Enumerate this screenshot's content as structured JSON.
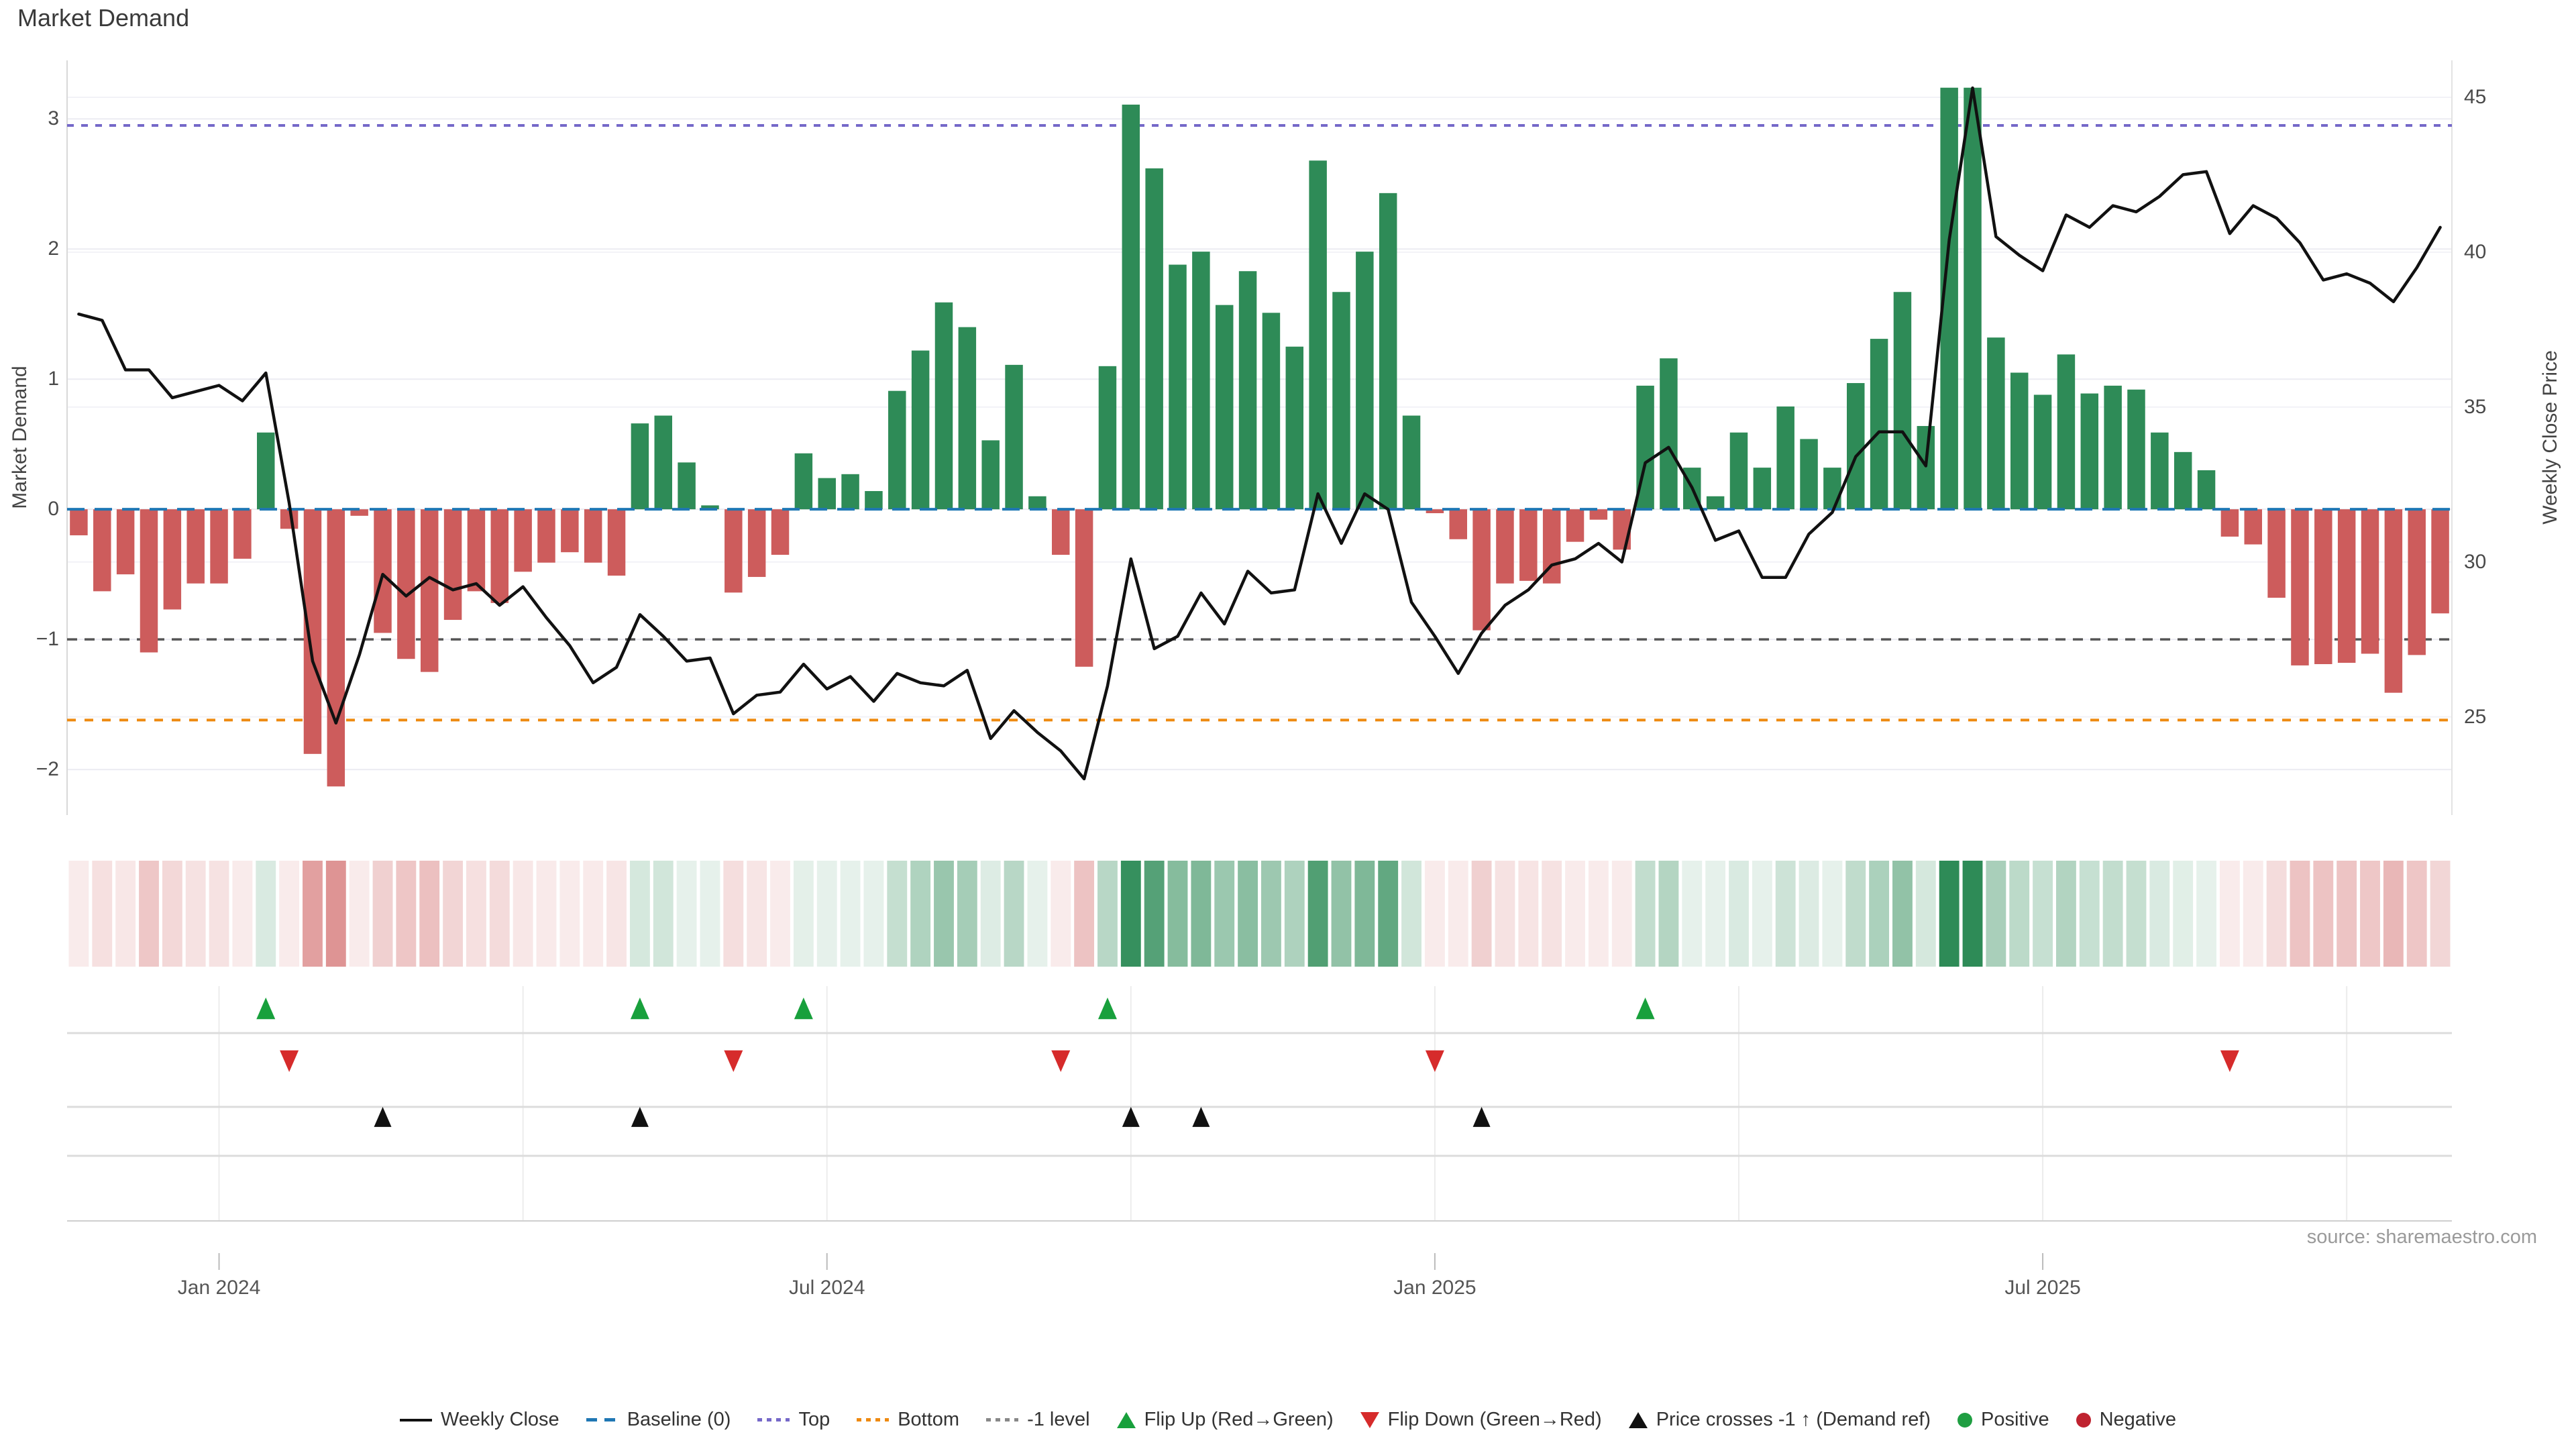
{
  "title": "Market Demand",
  "source": "source: sharemaestro.com",
  "left_axis": {
    "title": "Market Demand",
    "ticks": [
      3,
      2,
      1,
      0,
      -1,
      -2
    ]
  },
  "right_axis": {
    "title": "Weekly Close Price",
    "ticks": [
      45,
      40,
      35,
      30,
      25
    ]
  },
  "colors": {
    "bar_positive": "#2e8b57",
    "bar_negative": "#cd5c5c",
    "price_line": "#111111",
    "baseline_line": "#1f77b4",
    "top_line": "#7568c9",
    "bottom_line": "#ee8a10",
    "minus1_line": "#555555",
    "flip_up_marker": "#18a03c",
    "flip_down_marker": "#d62b2b",
    "price_cross_marker": "#111111",
    "grid": "#ececf2"
  },
  "legend": [
    {
      "key": "weekly-close",
      "label": "Weekly Close",
      "swatch": "line",
      "color": "#111111"
    },
    {
      "key": "baseline",
      "label": "Baseline (0)",
      "swatch": "dash",
      "color": "#1f77b4"
    },
    {
      "key": "top",
      "label": "Top",
      "swatch": "dot",
      "color": "#7568c9"
    },
    {
      "key": "bottom",
      "label": "Bottom",
      "swatch": "dot",
      "color": "#ee8a10"
    },
    {
      "key": "minus1-level",
      "label": "-1 level",
      "swatch": "dot",
      "color": "#888888"
    },
    {
      "key": "flip-up",
      "label": "Flip Up (Red→Green)",
      "swatch": "tri-up",
      "color": "#18a03c"
    },
    {
      "key": "flip-down",
      "label": "Flip Down (Green→Red)",
      "swatch": "tri-down",
      "color": "#d62b2b"
    },
    {
      "key": "price-cross",
      "label": "Price crosses -1 ↑ (Demand ref)",
      "swatch": "tri-up",
      "color": "#111111"
    },
    {
      "key": "positive",
      "label": "Positive",
      "swatch": "circle",
      "color": "#1f9e42"
    },
    {
      "key": "negative",
      "label": "Negative",
      "swatch": "circle",
      "color": "#bf2330"
    }
  ],
  "chart_data": {
    "type": "bar",
    "subtype": "combo-bar-line-with-heatmap-and-event-markers",
    "x_unit": "week",
    "n_points": 102,
    "x_range_note": "weekly data, late Nov 2023 through Oct 2025",
    "x_tick_labels": [
      {
        "label": "Jan 2024",
        "week": 7
      },
      {
        "label": "Jul 2024",
        "week": 33
      },
      {
        "label": "Jan 2025",
        "week": 59
      },
      {
        "label": "Jul 2025",
        "week": 85
      }
    ],
    "quarter_gridline_weeks": [
      7,
      20,
      33,
      46,
      59,
      72,
      85,
      98
    ],
    "ylim_left": [
      -2.35,
      3.45
    ],
    "ylim_right_ticks": [
      25,
      45
    ],
    "right_axis_map": {
      "price_at_demand_zero": 31.7,
      "price_per_demand_unit": 4.2
    },
    "levels": {
      "baseline": 0,
      "top": 2.95,
      "bottom": -1.62,
      "minus1": -1
    },
    "series": [
      {
        "name": "Market Demand",
        "type": "bar",
        "axis": "left",
        "values": [
          -0.2,
          -0.63,
          -0.5,
          -1.1,
          -0.77,
          -0.57,
          -0.57,
          -0.38,
          0.59,
          -0.15,
          -1.88,
          -2.13,
          -0.05,
          -0.95,
          -1.15,
          -1.25,
          -0.85,
          -0.63,
          -0.72,
          -0.48,
          -0.41,
          -0.33,
          -0.41,
          -0.51,
          0.66,
          0.72,
          0.36,
          0.03,
          -0.64,
          -0.52,
          -0.35,
          0.43,
          0.24,
          0.27,
          0.14,
          0.91,
          1.22,
          1.59,
          1.4,
          0.53,
          1.11,
          0.1,
          -0.35,
          -1.21,
          1.1,
          3.11,
          2.62,
          1.88,
          1.98,
          1.57,
          1.83,
          1.51,
          1.25,
          2.68,
          1.67,
          1.98,
          2.43,
          0.72,
          -0.03,
          -0.23,
          -0.93,
          -0.57,
          -0.55,
          -0.57,
          -0.25,
          -0.08,
          -0.31,
          0.95,
          1.16,
          0.32,
          0.1,
          0.59,
          0.32,
          0.79,
          0.54,
          0.32,
          0.97,
          1.31,
          1.67,
          0.64,
          3.24,
          3.24,
          1.32,
          1.05,
          0.88,
          1.19,
          0.89,
          0.95,
          0.92,
          0.59,
          0.44,
          0.3,
          -0.21,
          -0.27,
          -0.68,
          -1.2,
          -1.19,
          -1.18,
          -1.11,
          -1.41,
          -1.12,
          -0.8
        ]
      },
      {
        "name": "Weekly Close",
        "type": "line",
        "axis": "right",
        "values": [
          38.0,
          37.8,
          36.2,
          36.2,
          35.3,
          35.5,
          35.7,
          35.2,
          36.1,
          31.9,
          26.8,
          24.8,
          27.0,
          29.6,
          28.9,
          29.5,
          29.1,
          29.3,
          28.6,
          29.2,
          28.2,
          27.3,
          26.1,
          26.6,
          28.3,
          27.6,
          26.8,
          26.9,
          25.1,
          25.7,
          25.8,
          26.7,
          25.9,
          26.3,
          25.5,
          26.4,
          26.1,
          26.0,
          26.5,
          24.3,
          25.2,
          24.5,
          23.9,
          23.0,
          26.0,
          30.1,
          27.2,
          27.6,
          29.0,
          28.0,
          29.7,
          29.0,
          29.1,
          32.2,
          30.6,
          32.2,
          31.7,
          28.7,
          27.6,
          26.4,
          27.7,
          28.6,
          29.1,
          29.9,
          30.1,
          30.6,
          30.0,
          33.2,
          33.7,
          32.4,
          30.7,
          31.0,
          29.5,
          29.5,
          30.9,
          31.6,
          33.4,
          34.2,
          34.2,
          33.1,
          40.4,
          45.3,
          40.5,
          39.9,
          39.4,
          41.2,
          40.8,
          41.5,
          41.3,
          41.8,
          42.5,
          42.6,
          40.6,
          41.5,
          41.1,
          40.3,
          39.1,
          39.3,
          39.0,
          38.4,
          39.5,
          40.8
        ]
      }
    ],
    "heatmap": {
      "derived_from": "Market Demand bar values",
      "max_abs_value": 3.24
    },
    "events": {
      "flip_up_weeks": [
        9,
        25,
        32,
        45,
        68
      ],
      "flip_down_weeks": [
        10,
        29,
        43,
        59,
        93
      ],
      "price_cross_weeks": [
        14,
        25,
        46,
        49,
        61
      ]
    }
  }
}
